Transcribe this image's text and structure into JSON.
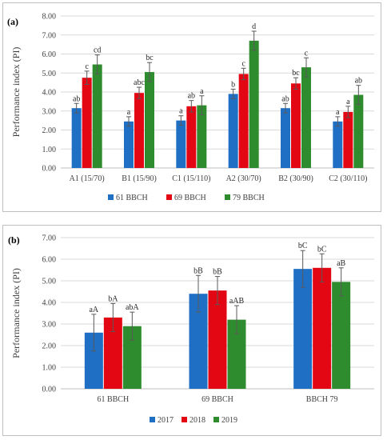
{
  "chart_data": [
    {
      "type": "bar",
      "panel_label": "(a)",
      "ylabel": "Performance index (PI)",
      "ylim": [
        0,
        8
      ],
      "ytick_step": 1,
      "ytick_labels": [
        "0.00",
        "1.00",
        "2.00",
        "3.00",
        "4.00",
        "5.00",
        "6.00",
        "7.00",
        "8.00"
      ],
      "grid": true,
      "legend_position": "bottom",
      "categories": [
        "A1 (15/70)",
        "B1 (15/90)",
        "C1 (15/110)",
        "A2 (30/70)",
        "B2 (30/90)",
        "C2 (30/110)"
      ],
      "series": [
        {
          "name": "61 BBCH",
          "color": "#1f6fc5",
          "values": [
            3.15,
            2.45,
            2.5,
            3.9,
            3.15,
            2.45
          ],
          "errors": [
            0.25,
            0.25,
            0.25,
            0.25,
            0.25,
            0.25
          ],
          "labels": [
            "ab",
            "a",
            "a",
            "b",
            "ab",
            "a"
          ]
        },
        {
          "name": "69 BBCH",
          "color": "#e30613",
          "values": [
            4.75,
            3.95,
            3.25,
            4.95,
            4.45,
            2.95
          ],
          "errors": [
            0.35,
            0.3,
            0.3,
            0.3,
            0.3,
            0.3
          ],
          "labels": [
            "c",
            "abc",
            "ab",
            "c",
            "bc",
            "a"
          ]
        },
        {
          "name": "79 BBCH",
          "color": "#2e8b2e",
          "values": [
            5.45,
            5.05,
            3.3,
            6.7,
            5.3,
            3.85
          ],
          "errors": [
            0.5,
            0.5,
            0.5,
            0.5,
            0.5,
            0.5
          ],
          "labels": [
            "cd",
            "bc",
            "a",
            "d",
            "c",
            "ab"
          ]
        }
      ]
    },
    {
      "type": "bar",
      "panel_label": "(b)",
      "ylabel": "Performance index (PI)",
      "ylim": [
        0,
        7
      ],
      "ytick_step": 1,
      "ytick_labels": [
        "0.00",
        "1.00",
        "2.00",
        "3.00",
        "4.00",
        "5.00",
        "6.00",
        "7.00"
      ],
      "grid": true,
      "legend_position": "bottom",
      "categories": [
        "61 BBCH",
        "69 BBCH",
        "BBCH 79"
      ],
      "series": [
        {
          "name": "2017",
          "color": "#1f6fc5",
          "values": [
            2.6,
            4.4,
            5.55
          ],
          "errors": [
            0.85,
            0.85,
            0.85
          ],
          "labels": [
            "aA",
            "bB",
            "bC"
          ]
        },
        {
          "name": "2018",
          "color": "#e30613",
          "values": [
            3.3,
            4.55,
            5.6
          ],
          "errors": [
            0.65,
            0.65,
            0.65
          ],
          "labels": [
            "bA",
            "bB",
            "bC"
          ]
        },
        {
          "name": "2019",
          "color": "#2e8b2e",
          "values": [
            2.9,
            3.2,
            4.95
          ],
          "errors": [
            0.65,
            0.65,
            0.65
          ],
          "labels": [
            "abA",
            "aAB",
            "aB"
          ]
        }
      ]
    }
  ]
}
